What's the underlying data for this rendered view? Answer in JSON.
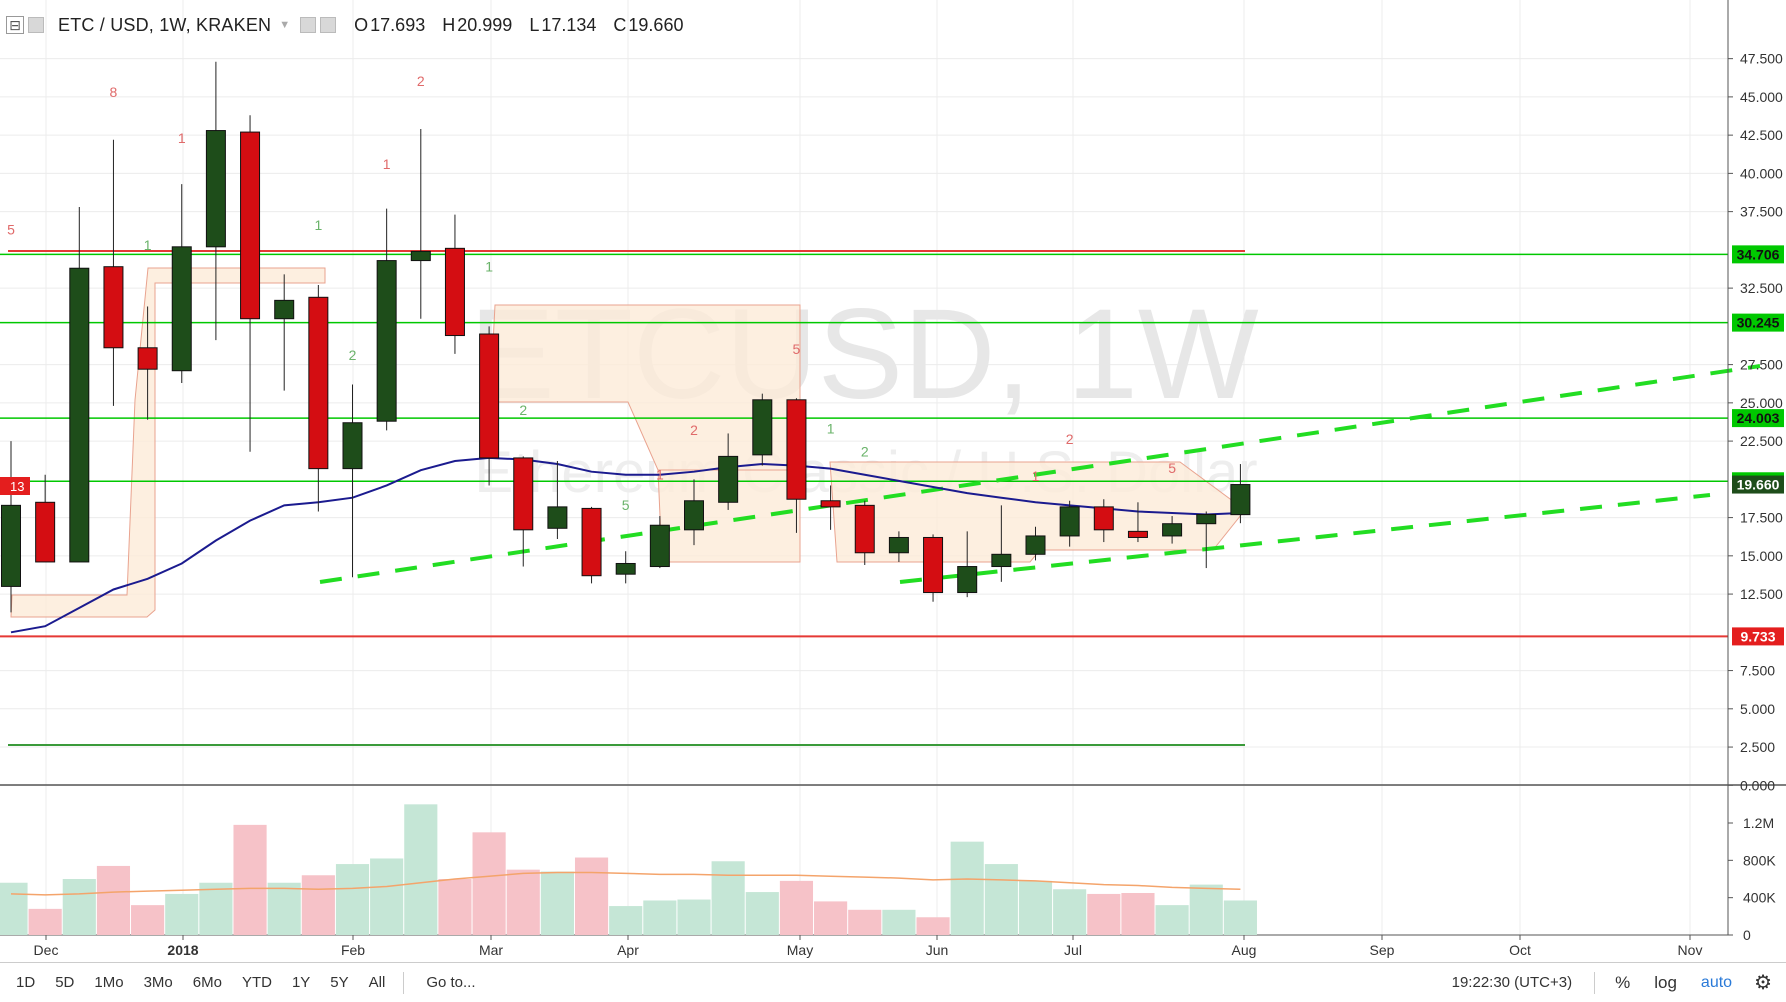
{
  "header": {
    "symbol": "ETC / USD, 1W, KRAKEN",
    "ohlc": [
      {
        "key": "O",
        "value": "17.693"
      },
      {
        "key": "H",
        "value": "20.999"
      },
      {
        "key": "L",
        "value": "17.134"
      },
      {
        "key": "C",
        "value": "19.660"
      }
    ]
  },
  "toolbar": {
    "ranges": [
      "1D",
      "5D",
      "1Mo",
      "3Mo",
      "6Mo",
      "YTD",
      "1Y",
      "5Y",
      "All"
    ],
    "goto": "Go to...",
    "clock": "19:22:30 (UTC+3)",
    "percent": "%",
    "log": "log",
    "auto": "auto"
  },
  "colors": {
    "up": "#1e4d1a",
    "down": "#d40d12",
    "ma": "#1b1b8f",
    "level_green": "#00c800",
    "level_red": "#e53935",
    "trend": "#22dd22",
    "cloud_fill": "#fdebd8",
    "vol_up": "#c5e6d6",
    "vol_down": "#f6c2c8",
    "vol_ma": "#f4a46b",
    "axis_text": "#333333"
  },
  "chart_data": {
    "type": "candlestick",
    "watermark": "ETCUSD, 1W",
    "watermark_sub": "Ethereum Classic / U.S. Dollar",
    "x_labels": [
      "Dec",
      "2018",
      "Feb",
      "Mar",
      "Apr",
      "May",
      "Jun",
      "Jul",
      "Aug",
      "Sep",
      "Oct",
      "Nov"
    ],
    "y_ticks": [
      "47.500",
      "45.000",
      "42.500",
      "40.000",
      "37.500",
      "32.500",
      "27.500",
      "25.000",
      "22.500",
      "17.500",
      "15.000",
      "12.500",
      "7.500",
      "5.000",
      "2.500",
      "0.000"
    ],
    "volume_ticks": [
      "1.2M",
      "800K",
      "400K",
      "0"
    ],
    "price_levels": [
      {
        "label": "34.706",
        "value": 34.706,
        "color": "green"
      },
      {
        "label": "30.245",
        "value": 30.245,
        "color": "green"
      },
      {
        "label": "24.003",
        "value": 24.003,
        "color": "green"
      },
      {
        "label": "19.874",
        "value": 19.874,
        "color": "green"
      },
      {
        "label": "19.660",
        "value": 19.66,
        "color": "current"
      },
      {
        "label": "9.733",
        "value": 9.733,
        "color": "red"
      }
    ],
    "counter_badge": "13",
    "candles": [
      {
        "o": 13.0,
        "h": 22.5,
        "l": 11.3,
        "c": 18.3
      },
      {
        "o": 18.5,
        "h": 20.3,
        "l": 14.8,
        "c": 14.6
      },
      {
        "o": 14.6,
        "h": 37.8,
        "l": 14.6,
        "c": 33.8
      },
      {
        "o": 33.9,
        "h": 42.2,
        "l": 24.8,
        "c": 28.6
      },
      {
        "o": 28.6,
        "h": 31.3,
        "l": 23.9,
        "c": 27.2
      },
      {
        "o": 27.1,
        "h": 39.3,
        "l": 26.3,
        "c": 35.2
      },
      {
        "o": 35.2,
        "h": 47.3,
        "l": 29.1,
        "c": 42.8
      },
      {
        "o": 42.7,
        "h": 43.8,
        "l": 21.8,
        "c": 30.5
      },
      {
        "o": 30.5,
        "h": 33.4,
        "l": 25.8,
        "c": 31.7
      },
      {
        "o": 31.9,
        "h": 32.7,
        "l": 17.9,
        "c": 20.7
      },
      {
        "o": 20.7,
        "h": 26.2,
        "l": 13.6,
        "c": 23.7
      },
      {
        "o": 23.8,
        "h": 37.7,
        "l": 23.2,
        "c": 34.3
      },
      {
        "o": 34.3,
        "h": 42.9,
        "l": 30.5,
        "c": 34.9
      },
      {
        "o": 35.1,
        "h": 37.3,
        "l": 28.2,
        "c": 29.4
      },
      {
        "o": 29.5,
        "h": 30.0,
        "l": 19.6,
        "c": 21.4
      },
      {
        "o": 21.4,
        "h": 21.5,
        "l": 14.3,
        "c": 16.7
      },
      {
        "o": 16.8,
        "h": 21.2,
        "l": 16.1,
        "c": 18.2
      },
      {
        "o": 18.1,
        "h": 18.2,
        "l": 13.2,
        "c": 13.7
      },
      {
        "o": 13.8,
        "h": 15.3,
        "l": 13.2,
        "c": 14.5
      },
      {
        "o": 14.3,
        "h": 17.6,
        "l": 14.2,
        "c": 17.0
      },
      {
        "o": 16.7,
        "h": 20.0,
        "l": 15.7,
        "c": 18.6
      },
      {
        "o": 18.5,
        "h": 23.0,
        "l": 18.0,
        "c": 21.5
      },
      {
        "o": 21.6,
        "h": 25.6,
        "l": 20.9,
        "c": 25.2
      },
      {
        "o": 25.2,
        "h": 25.3,
        "l": 16.5,
        "c": 18.7
      },
      {
        "o": 18.6,
        "h": 19.6,
        "l": 16.7,
        "c": 18.2
      },
      {
        "o": 18.3,
        "h": 18.6,
        "l": 14.4,
        "c": 15.2
      },
      {
        "o": 15.2,
        "h": 16.6,
        "l": 14.6,
        "c": 16.2
      },
      {
        "o": 16.2,
        "h": 16.4,
        "l": 12.0,
        "c": 12.6
      },
      {
        "o": 12.6,
        "h": 16.6,
        "l": 12.3,
        "c": 14.3
      },
      {
        "o": 14.3,
        "h": 18.3,
        "l": 13.3,
        "c": 15.1
      },
      {
        "o": 15.1,
        "h": 16.9,
        "l": 14.7,
        "c": 16.3
      },
      {
        "o": 16.3,
        "h": 18.6,
        "l": 15.6,
        "c": 18.2
      },
      {
        "o": 18.2,
        "h": 18.7,
        "l": 15.9,
        "c": 16.7
      },
      {
        "o": 16.6,
        "h": 18.5,
        "l": 15.9,
        "c": 16.2
      },
      {
        "o": 16.3,
        "h": 17.6,
        "l": 15.8,
        "c": 17.1
      },
      {
        "o": 17.1,
        "h": 17.9,
        "l": 14.2,
        "c": 17.7
      },
      {
        "o": 17.693,
        "h": 20.999,
        "l": 17.134,
        "c": 19.66
      }
    ],
    "volume": [
      {
        "v": 560000,
        "up": true
      },
      {
        "v": 280000,
        "up": false
      },
      {
        "v": 600000,
        "up": true
      },
      {
        "v": 740000,
        "up": false
      },
      {
        "v": 320000,
        "up": false
      },
      {
        "v": 440000,
        "up": true
      },
      {
        "v": 560000,
        "up": true
      },
      {
        "v": 1180000,
        "up": false
      },
      {
        "v": 560000,
        "up": true
      },
      {
        "v": 640000,
        "up": false
      },
      {
        "v": 760000,
        "up": true
      },
      {
        "v": 820000,
        "up": true
      },
      {
        "v": 1400000,
        "up": true
      },
      {
        "v": 600000,
        "up": false
      },
      {
        "v": 1100000,
        "up": false
      },
      {
        "v": 700000,
        "up": false
      },
      {
        "v": 680000,
        "up": true
      },
      {
        "v": 830000,
        "up": false
      },
      {
        "v": 310000,
        "up": true
      },
      {
        "v": 370000,
        "up": true
      },
      {
        "v": 380000,
        "up": true
      },
      {
        "v": 790000,
        "up": true
      },
      {
        "v": 460000,
        "up": true
      },
      {
        "v": 580000,
        "up": false
      },
      {
        "v": 360000,
        "up": false
      },
      {
        "v": 270000,
        "up": false
      },
      {
        "v": 270000,
        "up": true
      },
      {
        "v": 190000,
        "up": false
      },
      {
        "v": 1000000,
        "up": true
      },
      {
        "v": 760000,
        "up": true
      },
      {
        "v": 580000,
        "up": true
      },
      {
        "v": 490000,
        "up": true
      },
      {
        "v": 440000,
        "up": false
      },
      {
        "v": 450000,
        "up": false
      },
      {
        "v": 320000,
        "up": true
      },
      {
        "v": 540000,
        "up": true
      },
      {
        "v": 370000,
        "up": true
      }
    ],
    "volume_ma": [
      440,
      430,
      440,
      460,
      470,
      480,
      490,
      500,
      500,
      490,
      500,
      520,
      560,
      600,
      630,
      660,
      670,
      670,
      660,
      650,
      650,
      640,
      640,
      640,
      630,
      620,
      610,
      590,
      600,
      590,
      580,
      560,
      540,
      530,
      510,
      500,
      490
    ],
    "ma_line": [
      10.0,
      10.4,
      11.6,
      12.8,
      13.5,
      14.5,
      16.0,
      17.3,
      18.3,
      18.5,
      18.8,
      19.6,
      20.6,
      21.2,
      21.4,
      21.3,
      21.0,
      20.5,
      20.3,
      20.3,
      20.5,
      20.8,
      21.0,
      20.9,
      20.7,
      20.3,
      19.9,
      19.5,
      19.1,
      18.8,
      18.5,
      18.3,
      18.1,
      17.9,
      17.8,
      17.7,
      17.8
    ],
    "td_labels": [
      {
        "i": 0,
        "price": 36.0,
        "text": "5",
        "color": "down"
      },
      {
        "i": 3,
        "price": 45.0,
        "text": "8",
        "color": "down"
      },
      {
        "i": 4,
        "price": 35.0,
        "text": "1",
        "color": "up"
      },
      {
        "i": 5,
        "price": 42.0,
        "text": "1",
        "color": "down"
      },
      {
        "i": 9,
        "price": 36.3,
        "text": "1",
        "color": "up"
      },
      {
        "i": 10,
        "price": 27.8,
        "text": "2",
        "color": "up"
      },
      {
        "i": 11,
        "price": 40.3,
        "text": "1",
        "color": "down"
      },
      {
        "i": 12,
        "price": 45.7,
        "text": "2",
        "color": "down"
      },
      {
        "i": 14,
        "price": 33.6,
        "text": "1",
        "color": "up"
      },
      {
        "i": 15,
        "price": 24.2,
        "text": "2",
        "color": "up"
      },
      {
        "i": 18,
        "price": 18.0,
        "text": "5",
        "color": "up"
      },
      {
        "i": 19,
        "price": 20.0,
        "text": "1",
        "color": "down"
      },
      {
        "i": 20,
        "price": 22.9,
        "text": "2",
        "color": "down"
      },
      {
        "i": 23,
        "price": 28.2,
        "text": "5",
        "color": "down"
      },
      {
        "i": 24,
        "price": 23.0,
        "text": "1",
        "color": "up"
      },
      {
        "i": 25,
        "price": 21.5,
        "text": "2",
        "color": "up"
      },
      {
        "i": 30,
        "price": 19.9,
        "text": "1",
        "color": "down"
      },
      {
        "i": 31,
        "price": 22.3,
        "text": "2",
        "color": "down"
      },
      {
        "i": 34,
        "price": 20.4,
        "text": "5",
        "color": "down"
      }
    ]
  }
}
